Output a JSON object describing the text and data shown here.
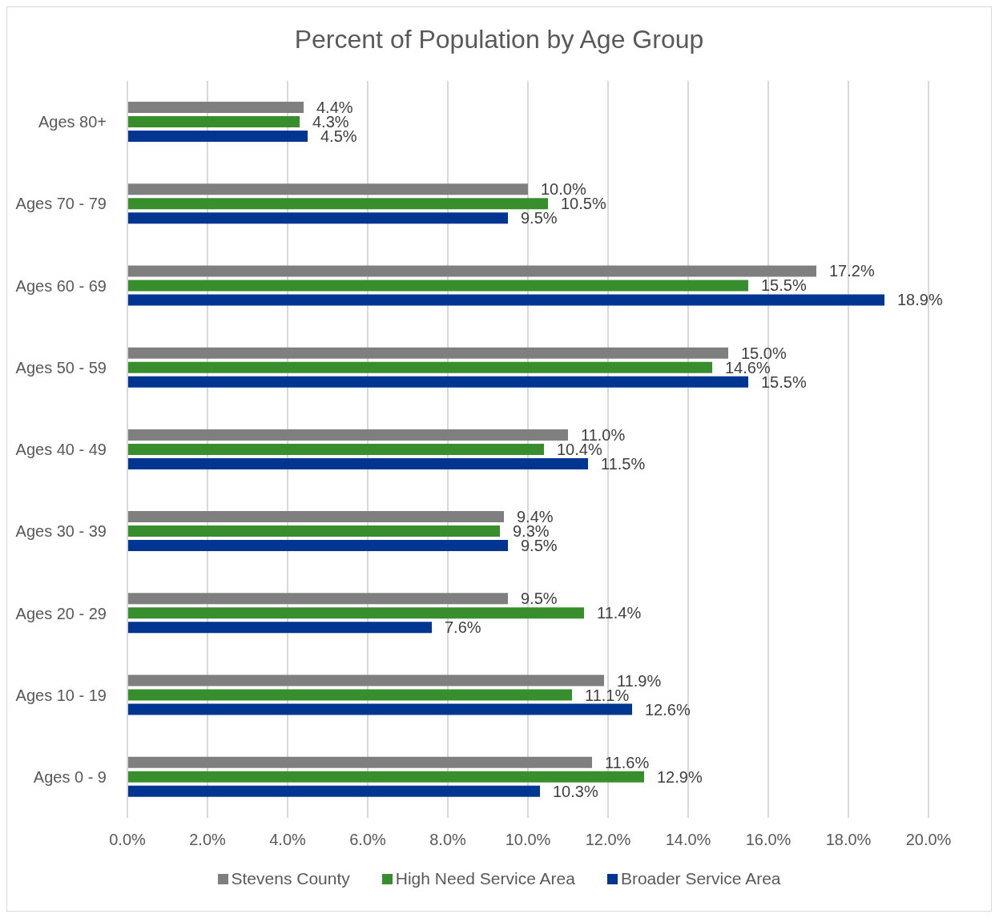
{
  "chart_data": {
    "type": "bar",
    "orientation": "horizontal",
    "title": "Percent of Population by Age Group",
    "categories": [
      "Ages 80+",
      "Ages 70 - 79",
      "Ages 60 - 69",
      "Ages 50 - 59",
      "Ages 40 - 49",
      "Ages 30 - 39",
      "Ages 20 - 29",
      "Ages 10 - 19",
      "Ages 0 - 9"
    ],
    "series": [
      {
        "name": "Stevens County",
        "color": "#7f7f7f",
        "values": [
          4.4,
          10.0,
          17.2,
          15.0,
          11.0,
          9.4,
          9.5,
          11.9,
          11.6
        ],
        "value_labels": [
          "4.4%",
          "10.0%",
          "17.2%",
          "15.0%",
          "11.0%",
          "9.4%",
          "9.5%",
          "11.9%",
          "11.6%"
        ]
      },
      {
        "name": "High Need Service Area",
        "color": "#388e2c",
        "values": [
          4.3,
          10.5,
          15.5,
          14.6,
          10.4,
          9.3,
          11.4,
          11.1,
          12.9
        ],
        "value_labels": [
          "4.3%",
          "10.5%",
          "15.5%",
          "14.6%",
          "10.4%",
          "9.3%",
          "11.4%",
          "11.1%",
          "12.9%"
        ]
      },
      {
        "name": "Broader Service Area",
        "color": "#003591",
        "values": [
          4.5,
          9.5,
          18.9,
          15.5,
          11.5,
          9.5,
          7.6,
          12.6,
          10.3
        ],
        "value_labels": [
          "4.5%",
          "9.5%",
          "18.9%",
          "15.5%",
          "11.5%",
          "9.5%",
          "7.6%",
          "12.6%",
          "10.3%"
        ]
      }
    ],
    "xlim": [
      0,
      20
    ],
    "xticks": [
      {
        "value": 0,
        "label": "0.0%"
      },
      {
        "value": 2,
        "label": "2.0%"
      },
      {
        "value": 4,
        "label": "4.0%"
      },
      {
        "value": 6,
        "label": "6.0%"
      },
      {
        "value": 8,
        "label": "8.0%"
      },
      {
        "value": 10,
        "label": "10.0%"
      },
      {
        "value": 12,
        "label": "12.0%"
      },
      {
        "value": 14,
        "label": "14.0%"
      },
      {
        "value": 16,
        "label": "16.0%"
      },
      {
        "value": 18,
        "label": "18.0%"
      },
      {
        "value": 20,
        "label": "20.0%"
      }
    ],
    "grid": "x",
    "legend": "bottom"
  }
}
